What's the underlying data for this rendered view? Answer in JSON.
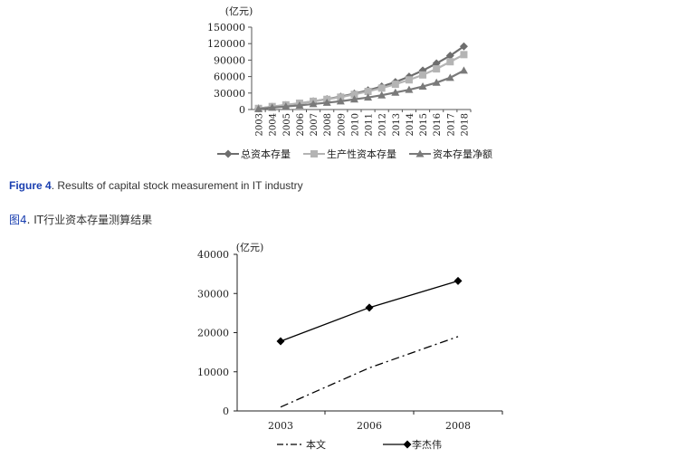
{
  "figure4_caption": {
    "label": "Figure 4",
    "text": ". Results of capital stock measurement in IT industry"
  },
  "figure4_caption_cn": {
    "label": "图4",
    "text": ". IT行业资本存量测算结果"
  },
  "chart_data": [
    {
      "type": "line",
      "ylabel": "(亿元)",
      "ylim": [
        0,
        150000
      ],
      "yticks": [
        0,
        30000,
        60000,
        90000,
        120000,
        150000
      ],
      "ytick_labels": [
        "0",
        "30000",
        "60000",
        "90000",
        "120000",
        "150000"
      ],
      "categories": [
        "2003",
        "2004",
        "2005",
        "2006",
        "2007",
        "2008",
        "2009",
        "2010",
        "2011",
        "2012",
        "2013",
        "2014",
        "2015",
        "2016",
        "2017",
        "2018"
      ],
      "legend_position": "bottom",
      "series": [
        {
          "name": "总资本存量",
          "marker": "diamond",
          "color": "#6e6e6e",
          "values": [
            2000,
            5000,
            8000,
            11000,
            15000,
            19000,
            23500,
            29000,
            35000,
            42000,
            50000,
            60000,
            71000,
            84000,
            98000,
            115000
          ]
        },
        {
          "name": "生产性资本存量",
          "marker": "square",
          "color": "#b4b4b4",
          "values": [
            2000,
            5500,
            8500,
            11500,
            15000,
            18500,
            22500,
            27500,
            33000,
            39000,
            46000,
            54000,
            63000,
            74000,
            87000,
            100000
          ]
        },
        {
          "name": "资本存量净额",
          "marker": "triangle",
          "color": "#7a7a7a",
          "values": [
            1000,
            3500,
            5500,
            7500,
            10000,
            12500,
            15000,
            18500,
            22000,
            26000,
            31000,
            36000,
            42000,
            49000,
            58000,
            71000
          ]
        }
      ]
    },
    {
      "type": "line",
      "ylabel": "(亿元)",
      "ylim": [
        0,
        40000
      ],
      "yticks": [
        0,
        10000,
        20000,
        30000,
        40000
      ],
      "ytick_labels": [
        "0",
        "10000",
        "20000",
        "30000",
        "40000"
      ],
      "categories": [
        "2003",
        "2006",
        "2008"
      ],
      "legend_position": "bottom",
      "series": [
        {
          "name": "本文",
          "style": "dash-dot",
          "color": "#000000",
          "values": [
            1000,
            11000,
            19000
          ]
        },
        {
          "name": "李杰伟",
          "style": "solid",
          "marker": "diamond",
          "color": "#000000",
          "values": [
            17800,
            26400,
            33200
          ]
        }
      ]
    }
  ]
}
